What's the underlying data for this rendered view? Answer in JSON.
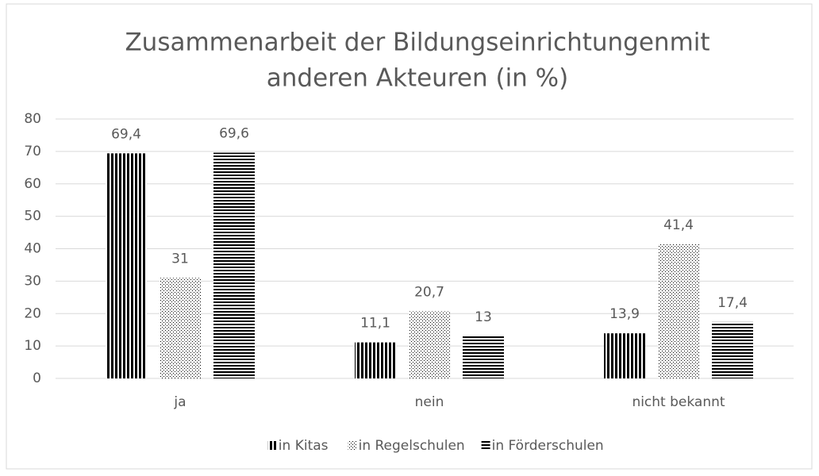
{
  "chart_data": {
    "type": "bar",
    "title": [
      "Zusammenarbeit der Bildungseinrichtungenmit",
      "anderen Akteuren (in %)"
    ],
    "categories": [
      "ja",
      "nein",
      "nicht bekannt"
    ],
    "series": [
      {
        "name": "in Kitas",
        "color": "#000000",
        "pattern": "vertical-stripes",
        "values": [
          69.4,
          11.1,
          13.9
        ],
        "value_labels": [
          "69,4",
          "11,1",
          "13,9"
        ]
      },
      {
        "name": "in Regelschulen",
        "color": "#000000",
        "pattern": "dots",
        "values": [
          31,
          20.7,
          41.4
        ],
        "value_labels": [
          "31",
          "20,7",
          "41,4"
        ]
      },
      {
        "name": "in Förderschulen",
        "color": "#000000",
        "pattern": "horizontal-stripes",
        "values": [
          69.6,
          13,
          17.4
        ],
        "value_labels": [
          "69,6",
          "13",
          "17,4"
        ]
      }
    ],
    "ylim": [
      0,
      80
    ],
    "yticks": [
      0,
      10,
      20,
      30,
      40,
      50,
      60,
      70,
      80
    ],
    "grid": true,
    "legend": "bottom"
  }
}
